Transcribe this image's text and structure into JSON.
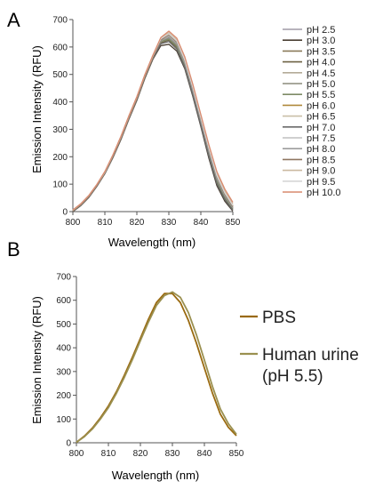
{
  "chart_data": [
    {
      "panel_label": "A",
      "type": "line",
      "xlabel": "Wavelength (nm)",
      "ylabel": "Emission Intensity (RFU)",
      "xlim": [
        800,
        850
      ],
      "ylim": [
        0,
        700
      ],
      "x_ticks": [
        "800",
        "810",
        "820",
        "830",
        "840",
        "850"
      ],
      "y_ticks": [
        "0",
        "100",
        "200",
        "300",
        "400",
        "500",
        "600",
        "700"
      ],
      "grid": false,
      "legend_position": "right",
      "x": [
        800,
        802.5,
        805,
        807.5,
        810,
        812.5,
        815,
        817.5,
        820,
        822.5,
        825,
        827.5,
        830,
        832.5,
        835,
        837.5,
        840,
        842.5,
        845,
        847.5,
        850
      ],
      "series": [
        {
          "name": "pH 2.5",
          "color": "#a09aa6",
          "values": [
            2,
            25,
            55,
            95,
            140,
            200,
            265,
            340,
            410,
            490,
            560,
            620,
            640,
            610,
            540,
            440,
            330,
            220,
            120,
            60,
            15
          ]
        },
        {
          "name": "pH 3.0",
          "color": "#4a3f33",
          "values": [
            0,
            22,
            52,
            92,
            138,
            196,
            262,
            336,
            405,
            485,
            555,
            605,
            610,
            585,
            520,
            420,
            310,
            195,
            95,
            38,
            2
          ]
        },
        {
          "name": "pH 3.5",
          "color": "#8a7a5a",
          "values": [
            3,
            26,
            56,
            96,
            142,
            202,
            268,
            342,
            412,
            492,
            562,
            622,
            638,
            612,
            542,
            442,
            332,
            222,
            122,
            58,
            14
          ]
        },
        {
          "name": "pH 4.0",
          "color": "#6e6244",
          "values": [
            1,
            24,
            54,
            94,
            140,
            199,
            265,
            339,
            409,
            489,
            559,
            615,
            625,
            598,
            530,
            430,
            320,
            208,
            108,
            48,
            8
          ]
        },
        {
          "name": "pH 4.5",
          "color": "#b4ab98",
          "values": [
            4,
            27,
            57,
            97,
            143,
            203,
            270,
            345,
            415,
            495,
            565,
            625,
            645,
            618,
            548,
            448,
            338,
            228,
            128,
            64,
            18
          ]
        },
        {
          "name": "pH 5.0",
          "color": "#8c8c7c",
          "values": [
            2,
            25,
            55,
            95,
            141,
            200,
            266,
            341,
            411,
            491,
            561,
            621,
            632,
            606,
            538,
            438,
            328,
            216,
            116,
            54,
            12
          ]
        },
        {
          "name": "pH 5.5",
          "color": "#7e8a66",
          "values": [
            2,
            24,
            55,
            94,
            140,
            200,
            266,
            340,
            410,
            490,
            560,
            620,
            628,
            602,
            535,
            435,
            325,
            212,
            112,
            50,
            10
          ]
        },
        {
          "name": "pH 6.0",
          "color": "#b08a3c",
          "values": [
            3,
            26,
            56,
            96,
            142,
            201,
            267,
            342,
            412,
            492,
            562,
            630,
            648,
            620,
            550,
            450,
            340,
            230,
            130,
            66,
            20
          ]
        },
        {
          "name": "pH 6.5",
          "color": "#c9bfa8",
          "values": [
            5,
            28,
            58,
            98,
            144,
            204,
            271,
            346,
            416,
            496,
            566,
            628,
            650,
            624,
            555,
            455,
            345,
            234,
            134,
            70,
            24
          ]
        },
        {
          "name": "pH 7.0",
          "color": "#6a6a6a",
          "values": [
            1,
            23,
            53,
            93,
            139,
            198,
            264,
            338,
            408,
            488,
            558,
            612,
            620,
            592,
            525,
            425,
            315,
            202,
            102,
            44,
            5
          ]
        },
        {
          "name": "pH 7.5",
          "color": "#bfbfbf",
          "values": [
            4,
            27,
            57,
            97,
            143,
            203,
            269,
            344,
            414,
            494,
            564,
            624,
            642,
            616,
            546,
            446,
            336,
            226,
            126,
            62,
            16
          ]
        },
        {
          "name": "pH 8.0",
          "color": "#9c9c9c",
          "values": [
            3,
            26,
            56,
            96,
            142,
            202,
            268,
            343,
            413,
            493,
            563,
            623,
            636,
            610,
            541,
            441,
            331,
            220,
            120,
            58,
            14
          ]
        },
        {
          "name": "pH 8.5",
          "color": "#8f7660",
          "values": [
            2,
            25,
            55,
            95,
            141,
            201,
            267,
            341,
            411,
            491,
            561,
            626,
            645,
            618,
            549,
            449,
            339,
            228,
            128,
            64,
            18
          ]
        },
        {
          "name": "pH 9.0",
          "color": "#cbb9a0",
          "values": [
            5,
            28,
            58,
            98,
            144,
            205,
            272,
            347,
            417,
            497,
            567,
            632,
            652,
            626,
            558,
            458,
            348,
            238,
            138,
            74,
            28
          ]
        },
        {
          "name": "pH 9.5",
          "color": "#d6d6d6",
          "values": [
            6,
            29,
            59,
            99,
            145,
            206,
            273,
            348,
            418,
            498,
            568,
            630,
            648,
            622,
            552,
            452,
            342,
            232,
            132,
            68,
            22
          ]
        },
        {
          "name": "pH 10.0",
          "color": "#d98a6e",
          "values": [
            6,
            29,
            59,
            99,
            146,
            206,
            274,
            349,
            419,
            499,
            570,
            635,
            658,
            632,
            564,
            464,
            354,
            244,
            146,
            82,
            34
          ]
        }
      ]
    },
    {
      "panel_label": "B",
      "type": "line",
      "xlabel": "Wavelength (nm)",
      "ylabel": "Emission Intensity (RFU)",
      "xlim": [
        800,
        850
      ],
      "ylim": [
        0,
        700
      ],
      "x_ticks": [
        "800",
        "810",
        "820",
        "830",
        "840",
        "850"
      ],
      "y_ticks": [
        "0",
        "100",
        "200",
        "300",
        "400",
        "500",
        "600",
        "700"
      ],
      "grid": false,
      "legend_position": "right",
      "x": [
        800,
        802.5,
        805,
        807.5,
        810,
        812.5,
        815,
        817.5,
        820,
        822.5,
        825,
        827.5,
        830,
        832.5,
        835,
        837.5,
        840,
        842.5,
        845,
        847.5,
        850
      ],
      "series": [
        {
          "name": "PBS",
          "color": "#9a6a10",
          "values": [
            2,
            28,
            62,
            105,
            155,
            215,
            285,
            360,
            440,
            520,
            590,
            628,
            628,
            590,
            515,
            420,
            315,
            210,
            120,
            65,
            30
          ]
        },
        {
          "name": "Human urine (pH 5.5)",
          "legend_lines": [
            "Human urine",
            "(pH 5.5)"
          ],
          "color": "#9a9050",
          "values": [
            2,
            26,
            58,
            100,
            148,
            208,
            276,
            350,
            430,
            508,
            578,
            620,
            635,
            612,
            548,
            455,
            348,
            238,
            142,
            80,
            36
          ]
        }
      ]
    }
  ]
}
